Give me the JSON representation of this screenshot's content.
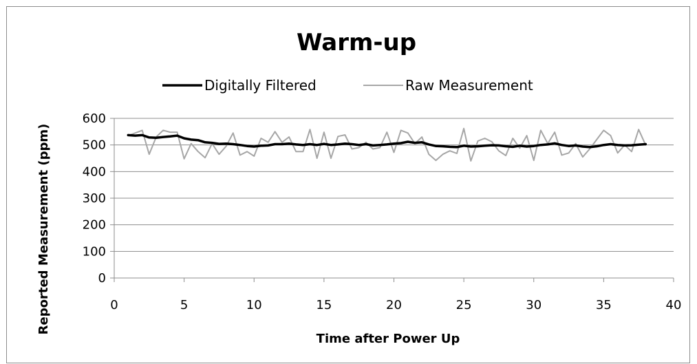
{
  "chart_data": {
    "type": "line",
    "title": "Warm-up",
    "xlabel": "Time after Power Up",
    "ylabel": "Reported Measurement (ppm)",
    "xlim": [
      0,
      40
    ],
    "ylim": [
      0,
      600
    ],
    "xticks": [
      "0",
      "5",
      "10",
      "15",
      "20",
      "25",
      "30",
      "35",
      "40"
    ],
    "yticks": [
      "0",
      "100",
      "200",
      "300",
      "400",
      "500",
      "600"
    ],
    "grid": "horizontal",
    "legend_position": "top",
    "series": [
      {
        "name": "Digitally Filtered",
        "color": "#000000",
        "x": [
          1.0,
          1.5,
          2.0,
          2.5,
          3.0,
          3.5,
          4.0,
          4.5,
          5.0,
          5.5,
          6.0,
          6.5,
          7.0,
          7.5,
          8.0,
          8.5,
          9.0,
          9.5,
          10.0,
          10.5,
          11.0,
          11.5,
          12.0,
          12.5,
          13.0,
          13.5,
          14.0,
          14.5,
          15.0,
          15.5,
          16.0,
          16.5,
          17.0,
          17.5,
          18.0,
          18.5,
          19.0,
          19.5,
          20.0,
          20.5,
          21.0,
          21.5,
          22.0,
          22.5,
          23.0,
          23.5,
          24.0,
          24.5,
          25.0,
          25.5,
          26.0,
          26.5,
          27.0,
          27.5,
          28.0,
          28.5,
          29.0,
          29.5,
          30.0,
          30.5,
          31.0,
          31.5,
          32.0,
          32.5,
          33.0,
          33.5,
          34.0,
          34.5,
          35.0,
          35.5,
          36.0,
          36.5,
          37.0,
          37.5,
          38.0
        ],
        "values": [
          537,
          535,
          537,
          528,
          527,
          530,
          532,
          535,
          525,
          520,
          518,
          510,
          508,
          504,
          505,
          503,
          500,
          496,
          494,
          497,
          498,
          503,
          503,
          505,
          502,
          500,
          503,
          500,
          504,
          500,
          502,
          505,
          503,
          500,
          503,
          498,
          500,
          502,
          505,
          507,
          512,
          508,
          510,
          502,
          496,
          495,
          493,
          492,
          497,
          494,
          495,
          497,
          499,
          498,
          495,
          493,
          497,
          494,
          496,
          500,
          502,
          506,
          500,
          496,
          498,
          494,
          492,
          495,
          500,
          503,
          500,
          498,
          499,
          501,
          503
        ]
      },
      {
        "name": "Raw Measurement",
        "color": "#a6a6a6",
        "x": [
          1.0,
          1.5,
          2.0,
          2.5,
          3.0,
          3.5,
          4.0,
          4.5,
          5.0,
          5.5,
          6.0,
          6.5,
          7.0,
          7.5,
          8.0,
          8.5,
          9.0,
          9.5,
          10.0,
          10.5,
          11.0,
          11.5,
          12.0,
          12.5,
          13.0,
          13.5,
          14.0,
          14.5,
          15.0,
          15.5,
          16.0,
          16.5,
          17.0,
          17.5,
          18.0,
          18.5,
          19.0,
          19.5,
          20.0,
          20.5,
          21.0,
          21.5,
          22.0,
          22.5,
          23.0,
          23.5,
          24.0,
          24.5,
          25.0,
          25.5,
          26.0,
          26.5,
          27.0,
          27.5,
          28.0,
          28.5,
          29.0,
          29.5,
          30.0,
          30.5,
          31.0,
          31.5,
          32.0,
          32.5,
          33.0,
          33.5,
          34.0,
          34.5,
          35.0,
          35.5,
          36.0,
          36.5,
          37.0,
          37.5,
          38.0
        ],
        "values": [
          535,
          545,
          555,
          465,
          530,
          555,
          548,
          548,
          448,
          505,
          475,
          452,
          505,
          465,
          495,
          545,
          462,
          475,
          458,
          525,
          510,
          550,
          510,
          530,
          475,
          475,
          558,
          450,
          548,
          450,
          532,
          538,
          485,
          490,
          510,
          485,
          490,
          548,
          472,
          555,
          545,
          505,
          530,
          465,
          442,
          465,
          478,
          468,
          562,
          440,
          515,
          525,
          512,
          478,
          460,
          525,
          488,
          535,
          442,
          555,
          505,
          548,
          462,
          470,
          505,
          455,
          485,
          520,
          555,
          535,
          470,
          500,
          475,
          558,
          500
        ]
      }
    ]
  }
}
